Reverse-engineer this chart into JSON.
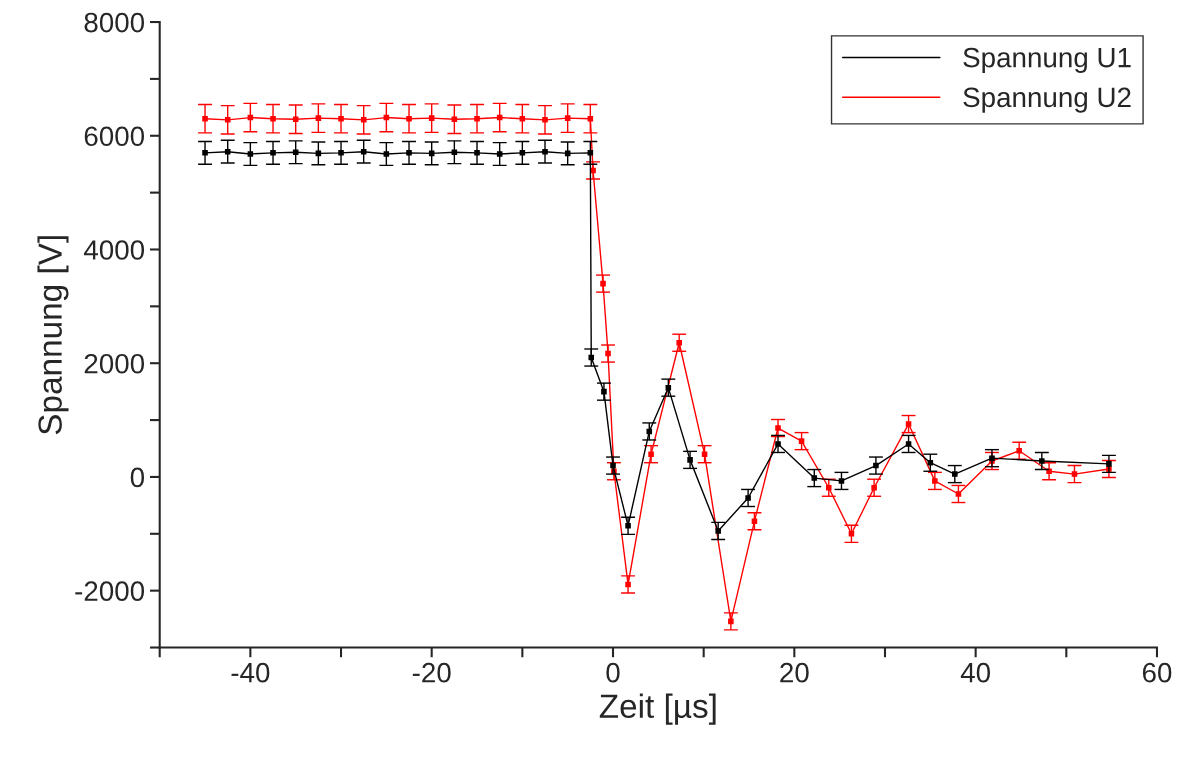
{
  "chart_data": {
    "type": "line",
    "xlabel": "Zeit [µs]",
    "ylabel": "Spannung [V]",
    "xlim": [
      -50,
      60
    ],
    "ylim": [
      -3000,
      8000
    ],
    "xticks": [
      {
        "value": -50,
        "label": null
      },
      -40,
      {
        "value": -30,
        "label": null
      },
      -20,
      {
        "value": -10,
        "label": null
      },
      0,
      {
        "value": 10,
        "label": null
      },
      20,
      {
        "value": 30,
        "label": null
      },
      40,
      {
        "value": 50,
        "label": null
      },
      60
    ],
    "yticks": [
      {
        "value": -3000,
        "label": null
      },
      -2000,
      {
        "value": -1000,
        "label": null
      },
      0,
      {
        "value": 1000,
        "label": null
      },
      2000,
      {
        "value": 3000,
        "label": null
      },
      4000,
      {
        "value": 5000,
        "label": null
      },
      6000,
      {
        "value": 7000,
        "label": null
      },
      8000
    ],
    "grid": false,
    "legend": "top right",
    "marker": "square",
    "line_style": "solid",
    "series": [
      {
        "name": "Spannung U1",
        "color": "#000000",
        "x": [
          -45,
          -42.5,
          -40,
          -37.5,
          -35,
          -32.5,
          -30,
          -27.5,
          -25,
          -22.5,
          -20,
          -17.5,
          -15,
          -12.5,
          -10,
          -7.5,
          -5,
          -2.5,
          -2.4,
          -1,
          0,
          1.66,
          4,
          6.1,
          8.5,
          11.6,
          14.9,
          18.2,
          22.2,
          25.2,
          29,
          32.6,
          35,
          37.7,
          41.8,
          47.3,
          54.7
        ],
        "values": [
          5700,
          5720,
          5680,
          5700,
          5710,
          5690,
          5700,
          5720,
          5680,
          5700,
          5690,
          5710,
          5700,
          5680,
          5700,
          5720,
          5690,
          5700,
          2100,
          1500,
          200,
          -860,
          800,
          1570,
          300,
          -950,
          -370,
          580,
          -20,
          -70,
          200,
          580,
          250,
          50,
          330,
          280,
          230
        ],
        "errors": [
          200,
          200,
          200,
          200,
          200,
          200,
          200,
          200,
          200,
          200,
          200,
          200,
          200,
          200,
          200,
          200,
          200,
          200,
          150,
          150,
          150,
          150,
          150,
          150,
          150,
          150,
          150,
          150,
          150,
          150,
          150,
          150,
          150,
          150,
          150,
          150,
          150
        ]
      },
      {
        "name": "Spannung U2",
        "color": "#ff0000",
        "x": [
          -45,
          -42.5,
          -40,
          -37.5,
          -35,
          -32.5,
          -30,
          -27.5,
          -25,
          -22.5,
          -20,
          -17.5,
          -15,
          -12.5,
          -10,
          -7.5,
          -5,
          -2.5,
          -2.2,
          -1.1,
          -0.55,
          0.1,
          1.66,
          4.2,
          7.3,
          10.1,
          13,
          15.6,
          18.2,
          20.8,
          23.8,
          26.3,
          28.8,
          32.6,
          35.5,
          38.1,
          41.8,
          44.8,
          48.1,
          50.9,
          54.7
        ],
        "values": [
          6300,
          6280,
          6320,
          6300,
          6290,
          6310,
          6300,
          6280,
          6320,
          6300,
          6310,
          6290,
          6300,
          6320,
          6300,
          6280,
          6310,
          6300,
          5390,
          3400,
          2170,
          100,
          -1890,
          400,
          2360,
          400,
          -2540,
          -780,
          860,
          630,
          -190,
          -1000,
          -190,
          930,
          -70,
          -300,
          280,
          460,
          100,
          50,
          140
        ],
        "errors": [
          250,
          250,
          250,
          250,
          250,
          250,
          250,
          250,
          250,
          250,
          250,
          250,
          250,
          250,
          250,
          250,
          250,
          250,
          150,
          150,
          150,
          150,
          150,
          150,
          150,
          150,
          150,
          150,
          150,
          150,
          150,
          150,
          150,
          150,
          150,
          150,
          150,
          150,
          150,
          150,
          150
        ]
      }
    ]
  }
}
